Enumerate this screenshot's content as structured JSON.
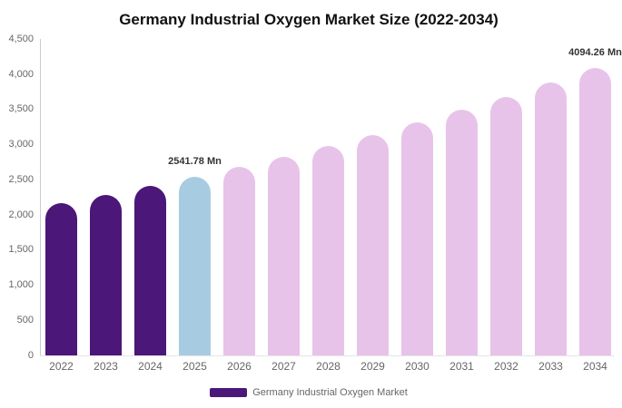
{
  "title": "Germany Industrial Oxygen Market Size (2022-2034)",
  "legend": {
    "label": "Germany Industrial Oxygen Market"
  },
  "colors": {
    "historical": "#4B1778",
    "highlight": "#A7CCE2",
    "forecast": "#E7C3E9",
    "axis_line": "#CCCCCC",
    "baseline": "#E6E6E6",
    "tick_text": "#666666",
    "data_label_text": "#333333",
    "title_text": "#111111"
  },
  "chart_data": {
    "type": "bar",
    "title": "Germany Industrial Oxygen Market Size (2022-2034)",
    "xlabel": "",
    "ylabel": "",
    "unit": "Mn",
    "ylim": [
      0,
      4500
    ],
    "grid": false,
    "legend_position": "bottom",
    "categories": [
      "2022",
      "2023",
      "2024",
      "2025",
      "2026",
      "2027",
      "2028",
      "2029",
      "2030",
      "2031",
      "2032",
      "2033",
      "2034"
    ],
    "values": [
      2168,
      2286,
      2411,
      2541.78,
      2680,
      2826,
      2980,
      3142,
      3313,
      3494,
      3684,
      3885,
      4094.26
    ],
    "bar_colors": [
      "historical",
      "historical",
      "historical",
      "highlight",
      "forecast",
      "forecast",
      "forecast",
      "forecast",
      "forecast",
      "forecast",
      "forecast",
      "forecast",
      "forecast"
    ],
    "data_labels": {
      "2025": "2541.78 Mn",
      "2034": "4094.26 Mn"
    },
    "yticks": [
      {
        "v": 0,
        "label": "0"
      },
      {
        "v": 500,
        "label": "500"
      },
      {
        "v": 1000,
        "label": "1,000"
      },
      {
        "v": 1500,
        "label": "1,500"
      },
      {
        "v": 2000,
        "label": "2,000"
      },
      {
        "v": 2500,
        "label": "2,500"
      },
      {
        "v": 3000,
        "label": "3,000"
      },
      {
        "v": 3500,
        "label": "3,500"
      },
      {
        "v": 4000,
        "label": "4,000"
      },
      {
        "v": 4500,
        "label": "4,500"
      }
    ],
    "series_name": "Germany Industrial Oxygen Market"
  }
}
